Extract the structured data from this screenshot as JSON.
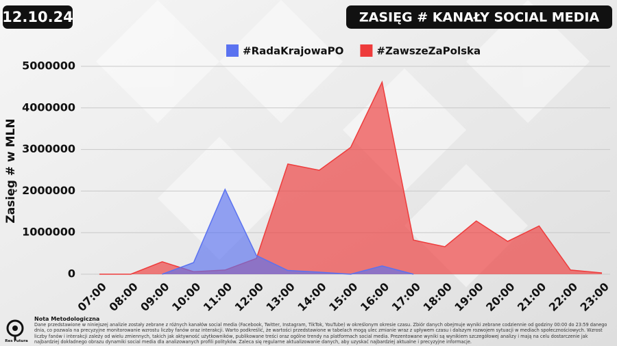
{
  "date": "12.10.24",
  "logo": "Res Futura",
  "note": {
    "title": "Nota Metodologiczna",
    "text": "Dane przedstawione w niniejszej analizie zostały zebrane z różnych kanałów social media (Facebook, Twitter, Instagram, TikTok, YouTube) w określonym okresie czasu. Zbiór danych obejmuje wyniki zebrane codziennie od godziny 00:00 do 23:59 danego dnia, co pozwala na precyzyjne monitorowanie wzrostu liczby fanów oraz interakcji. Warto podkreślić, że wartości przedstawione w tabelach mogą ulec zmianie wraz z upływem czasu i dalszym rozwojem sytuacji w mediach społecznościowych. Wzrost liczby fanów i interakcji zależy od wielu zmiennych, takich jak aktywność użytkowników, publikowane treści oraz ogólne trendy na platformach social media. Prezentowane wyniki są wynikiem szczegółowej analizy i mają na celu dostarczenie jak najbardziej dokładnego obrazu dynamiki social media dla analizowanych profili polityków. Zaleca się regularne aktualizowanie danych, aby uzyskać najbardziej aktualne i precyzyjne informacje."
  },
  "chart_data": {
    "type": "area",
    "title": "ZASIĘG # KANAŁY SOCIAL MEDIA",
    "y_label": "Zasięg # w MLN",
    "categories": [
      "07:00",
      "08:00",
      "09:00",
      "10:00",
      "11:00",
      "12:00",
      "13:00",
      "14:00",
      "15:00",
      "16:00",
      "17:00",
      "18:00",
      "19:00",
      "20:00",
      "21:00",
      "22:00",
      "23:00"
    ],
    "series": [
      {
        "name": "#ZawszeZaPolska",
        "color": "#ee3b3b",
        "values": [
          0,
          0,
          300000,
          60000,
          100000,
          380000,
          2650000,
          2500000,
          3050000,
          4620000,
          820000,
          660000,
          1280000,
          790000,
          1160000,
          100000,
          30000
        ]
      },
      {
        "name": "#RadaKrajowaPO",
        "color": "#5a72f0",
        "values": [
          null,
          null,
          0,
          280000,
          2040000,
          450000,
          90000,
          50000,
          0,
          200000,
          0,
          null,
          null,
          null,
          null,
          null,
          null
        ]
      }
    ],
    "legend_order": [
      1,
      0
    ],
    "ylim": [
      0,
      5000000
    ],
    "yticks": [
      0,
      1000000,
      2000000,
      3000000,
      4000000,
      5000000
    ],
    "grid": true
  }
}
